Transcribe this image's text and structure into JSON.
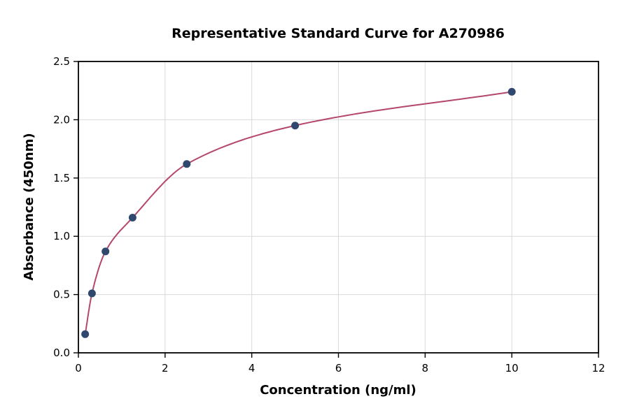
{
  "chart_data": {
    "type": "scatter",
    "title": "Representative Standard Curve for A270986",
    "xlabel": "Concentration (ng/ml)",
    "ylabel": "Absorbance (450nm)",
    "x": [
      0.156,
      0.313,
      0.625,
      1.25,
      2.5,
      5,
      10
    ],
    "y": [
      0.16,
      0.51,
      0.87,
      1.16,
      1.62,
      1.95,
      2.24
    ],
    "xlim": [
      0,
      12
    ],
    "ylim": [
      0,
      2.5
    ],
    "x_ticks": [
      0,
      2,
      4,
      6,
      8,
      10,
      12
    ],
    "y_ticks": [
      0,
      0.5,
      1,
      1.5,
      2,
      2.5
    ],
    "grid": true,
    "legend": "none",
    "series": [
      {
        "name": "standard-points",
        "type": "scatter"
      },
      {
        "name": "fit-curve",
        "type": "smooth-line"
      }
    ],
    "colors": {
      "point": "#31486e",
      "curve": "#b5476b",
      "grid": "#d9d9d9",
      "axis": "#000000",
      "background": "#ffffff"
    }
  }
}
